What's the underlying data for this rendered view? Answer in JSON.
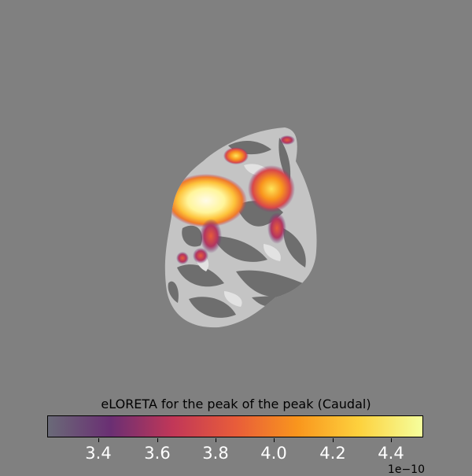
{
  "colorbar": {
    "title": "eLORETA for the peak of the peak (Caudal)",
    "ticks": [
      "3.4",
      "3.6",
      "3.8",
      "4.0",
      "4.2",
      "4.4"
    ],
    "offset_label": "1e−10",
    "colors": [
      "#6a6a78",
      "#6a2f73",
      "#c13758",
      "#e85c3a",
      "#f9961d",
      "#fdd23e",
      "#f5ff9e"
    ]
  },
  "background_color": "#808080"
}
